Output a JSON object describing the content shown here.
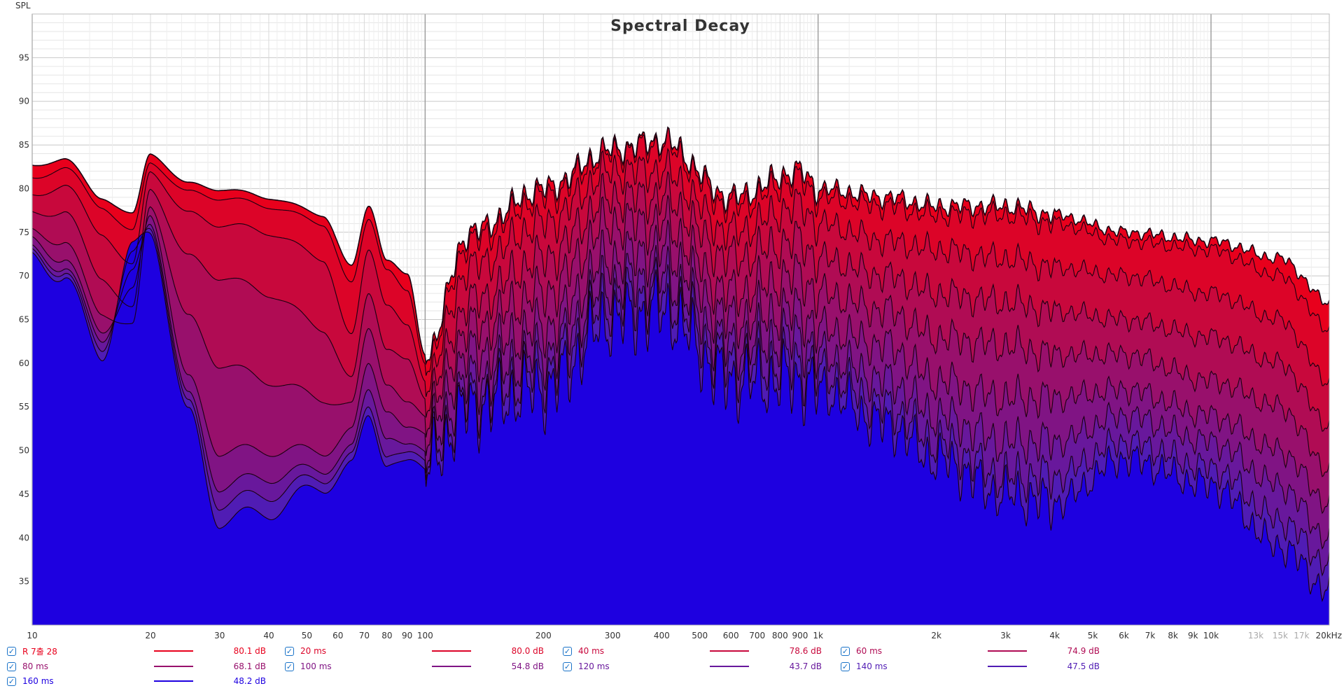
{
  "chart_data": {
    "type": "area",
    "title": "Spectral Decay",
    "ylabel": "SPL",
    "xlabel": "",
    "x_scale": "log",
    "xlim": [
      10,
      20000
    ],
    "ylim": [
      30,
      100
    ],
    "y_ticks": [
      35,
      40,
      45,
      50,
      55,
      60,
      65,
      70,
      75,
      80,
      85,
      90,
      95
    ],
    "x_ticks": [
      {
        "v": 10,
        "label": "10",
        "faint": false
      },
      {
        "v": 20,
        "label": "20",
        "faint": false
      },
      {
        "v": 30,
        "label": "30",
        "faint": false
      },
      {
        "v": 40,
        "label": "40",
        "faint": false
      },
      {
        "v": 50,
        "label": "50",
        "faint": false
      },
      {
        "v": 60,
        "label": "60",
        "faint": false
      },
      {
        "v": 70,
        "label": "70",
        "faint": false
      },
      {
        "v": 80,
        "label": "80",
        "faint": false
      },
      {
        "v": 90,
        "label": "90",
        "faint": false
      },
      {
        "v": 100,
        "label": "100",
        "faint": false
      },
      {
        "v": 200,
        "label": "200",
        "faint": false
      },
      {
        "v": 300,
        "label": "300",
        "faint": false
      },
      {
        "v": 400,
        "label": "400",
        "faint": false
      },
      {
        "v": 500,
        "label": "500",
        "faint": false
      },
      {
        "v": 600,
        "label": "600",
        "faint": false
      },
      {
        "v": 700,
        "label": "700",
        "faint": false
      },
      {
        "v": 800,
        "label": "800",
        "faint": false
      },
      {
        "v": 900,
        "label": "900",
        "faint": false
      },
      {
        "v": 1000,
        "label": "1k",
        "faint": false
      },
      {
        "v": 2000,
        "label": "2k",
        "faint": false
      },
      {
        "v": 3000,
        "label": "3k",
        "faint": false
      },
      {
        "v": 4000,
        "label": "4k",
        "faint": false
      },
      {
        "v": 5000,
        "label": "5k",
        "faint": false
      },
      {
        "v": 6000,
        "label": "6k",
        "faint": false
      },
      {
        "v": 7000,
        "label": "7k",
        "faint": false
      },
      {
        "v": 8000,
        "label": "8k",
        "faint": false
      },
      {
        "v": 9000,
        "label": "9k",
        "faint": false
      },
      {
        "v": 10000,
        "label": "10k",
        "faint": false
      },
      {
        "v": 13000,
        "label": "13k",
        "faint": true
      },
      {
        "v": 15000,
        "label": "15k",
        "faint": true
      },
      {
        "v": 17000,
        "label": "17k",
        "faint": true
      },
      {
        "v": 20000,
        "label": "20kHz",
        "faint": false
      }
    ],
    "series": [
      {
        "name": "R 7출 28",
        "value_label": "80.1 dB",
        "color": "#e8001c",
        "points": [
          [
            10,
            82.5
          ],
          [
            12,
            83.5
          ],
          [
            15,
            79
          ],
          [
            18,
            77
          ],
          [
            20,
            84
          ],
          [
            25,
            80.5
          ],
          [
            30,
            80
          ],
          [
            40,
            79
          ],
          [
            55,
            77
          ],
          [
            65,
            71
          ],
          [
            72,
            78
          ],
          [
            80,
            72
          ],
          [
            90,
            70
          ],
          [
            100,
            61
          ],
          [
            130,
            75
          ],
          [
            200,
            80
          ],
          [
            300,
            84.5
          ],
          [
            400,
            85.5
          ],
          [
            600,
            79
          ],
          [
            900,
            82
          ],
          [
            1000,
            80
          ],
          [
            1500,
            79
          ],
          [
            2000,
            78
          ],
          [
            3000,
            78
          ],
          [
            4000,
            77
          ],
          [
            6000,
            75
          ],
          [
            10000,
            74
          ],
          [
            15000,
            72
          ],
          [
            20000,
            67
          ]
        ]
      },
      {
        "name": "20 ms",
        "value_label": "80.0 dB",
        "color": "#dc0428",
        "points": [
          [
            10,
            81
          ],
          [
            12,
            82.5
          ],
          [
            15,
            78
          ],
          [
            18,
            75
          ],
          [
            20,
            83
          ],
          [
            25,
            79.5
          ],
          [
            30,
            79
          ],
          [
            40,
            78
          ],
          [
            55,
            76
          ],
          [
            65,
            69
          ],
          [
            72,
            76.5
          ],
          [
            80,
            71
          ],
          [
            90,
            68
          ],
          [
            100,
            60
          ],
          [
            130,
            74
          ],
          [
            200,
            79
          ],
          [
            300,
            84
          ],
          [
            400,
            85
          ],
          [
            600,
            78
          ],
          [
            900,
            81
          ],
          [
            1000,
            79
          ],
          [
            1500,
            78
          ],
          [
            2000,
            77
          ],
          [
            3000,
            77
          ],
          [
            4000,
            76
          ],
          [
            6000,
            74
          ],
          [
            10000,
            73
          ],
          [
            15000,
            70
          ],
          [
            20000,
            64
          ]
        ]
      },
      {
        "name": "40 ms",
        "value_label": "78.6 dB",
        "color": "#c8083c",
        "points": [
          [
            10,
            79
          ],
          [
            12,
            80.5
          ],
          [
            15,
            75
          ],
          [
            18,
            71
          ],
          [
            20,
            82
          ],
          [
            25,
            77
          ],
          [
            30,
            76
          ],
          [
            40,
            75
          ],
          [
            55,
            72
          ],
          [
            65,
            63
          ],
          [
            72,
            73
          ],
          [
            80,
            67
          ],
          [
            90,
            64
          ],
          [
            100,
            58
          ],
          [
            130,
            71
          ],
          [
            200,
            76
          ],
          [
            300,
            82
          ],
          [
            400,
            82
          ],
          [
            600,
            75
          ],
          [
            900,
            78
          ],
          [
            1000,
            76
          ],
          [
            1500,
            74
          ],
          [
            2000,
            73
          ],
          [
            3000,
            72
          ],
          [
            4000,
            71
          ],
          [
            6000,
            70
          ],
          [
            10000,
            68
          ],
          [
            15000,
            65
          ],
          [
            20000,
            58
          ]
        ]
      },
      {
        "name": "60 ms",
        "value_label": "74.9 dB",
        "color": "#b00c54",
        "points": [
          [
            10,
            77
          ],
          [
            12,
            77.5
          ],
          [
            15,
            70
          ],
          [
            18,
            66
          ],
          [
            20,
            80
          ],
          [
            25,
            72
          ],
          [
            30,
            70
          ],
          [
            40,
            68
          ],
          [
            55,
            64
          ],
          [
            65,
            58
          ],
          [
            72,
            68
          ],
          [
            80,
            62
          ],
          [
            90,
            60
          ],
          [
            100,
            56
          ],
          [
            130,
            67
          ],
          [
            200,
            72
          ],
          [
            300,
            79
          ],
          [
            400,
            79
          ],
          [
            600,
            72
          ],
          [
            900,
            74
          ],
          [
            1000,
            72
          ],
          [
            1500,
            70
          ],
          [
            2000,
            68
          ],
          [
            3000,
            67
          ],
          [
            4000,
            66
          ],
          [
            6000,
            65
          ],
          [
            10000,
            63
          ],
          [
            15000,
            60
          ],
          [
            20000,
            53
          ]
        ]
      },
      {
        "name": "80 ms",
        "value_label": "68.1 dB",
        "color": "#98106c",
        "points": [
          [
            10,
            75
          ],
          [
            12,
            74
          ],
          [
            15,
            66
          ],
          [
            18,
            64
          ],
          [
            20,
            78
          ],
          [
            25,
            65
          ],
          [
            30,
            60
          ],
          [
            40,
            58
          ],
          [
            55,
            56
          ],
          [
            65,
            55
          ],
          [
            72,
            64
          ],
          [
            80,
            58
          ],
          [
            90,
            55
          ],
          [
            100,
            54
          ],
          [
            130,
            64
          ],
          [
            200,
            68
          ],
          [
            300,
            76
          ],
          [
            400,
            76
          ],
          [
            600,
            68
          ],
          [
            900,
            70
          ],
          [
            1000,
            68
          ],
          [
            1500,
            66
          ],
          [
            2000,
            63
          ],
          [
            3000,
            62
          ],
          [
            4000,
            61
          ],
          [
            6000,
            61
          ],
          [
            10000,
            58
          ],
          [
            15000,
            55
          ],
          [
            20000,
            48
          ]
        ]
      },
      {
        "name": "100 ms",
        "value_label": "54.8 dB",
        "color": "#801484",
        "points": [
          [
            10,
            74
          ],
          [
            12,
            72
          ],
          [
            15,
            64
          ],
          [
            18,
            68
          ],
          [
            20,
            77
          ],
          [
            25,
            58
          ],
          [
            30,
            50
          ],
          [
            40,
            50
          ],
          [
            55,
            50
          ],
          [
            65,
            52
          ],
          [
            72,
            60
          ],
          [
            80,
            55
          ],
          [
            90,
            52
          ],
          [
            100,
            52
          ],
          [
            130,
            61
          ],
          [
            200,
            64
          ],
          [
            300,
            72
          ],
          [
            400,
            73
          ],
          [
            600,
            65
          ],
          [
            900,
            66
          ],
          [
            1000,
            64
          ],
          [
            1500,
            62
          ],
          [
            2000,
            58
          ],
          [
            3000,
            56
          ],
          [
            4000,
            56
          ],
          [
            6000,
            57
          ],
          [
            10000,
            54
          ],
          [
            15000,
            50
          ],
          [
            20000,
            44
          ]
        ]
      },
      {
        "name": "120 ms",
        "value_label": "43.7 dB",
        "color": "#68189c",
        "points": [
          [
            10,
            73
          ],
          [
            12,
            71
          ],
          [
            15,
            63
          ],
          [
            18,
            70
          ],
          [
            20,
            76
          ],
          [
            25,
            56
          ],
          [
            30,
            46
          ],
          [
            40,
            47
          ],
          [
            55,
            48
          ],
          [
            65,
            50
          ],
          [
            72,
            57
          ],
          [
            80,
            52
          ],
          [
            90,
            50
          ],
          [
            100,
            50
          ],
          [
            130,
            58
          ],
          [
            200,
            61
          ],
          [
            300,
            69
          ],
          [
            400,
            70
          ],
          [
            600,
            62
          ],
          [
            900,
            63
          ],
          [
            1000,
            61
          ],
          [
            1500,
            58
          ],
          [
            2000,
            54
          ],
          [
            3000,
            51
          ],
          [
            4000,
            51
          ],
          [
            6000,
            54
          ],
          [
            10000,
            51
          ],
          [
            15000,
            46
          ],
          [
            20000,
            40
          ]
        ]
      },
      {
        "name": "140 ms",
        "value_label": "47.5 dB",
        "color": "#501cb4",
        "points": [
          [
            10,
            72.5
          ],
          [
            12,
            70.5
          ],
          [
            15,
            62
          ],
          [
            18,
            72
          ],
          [
            20,
            75.5
          ],
          [
            25,
            55
          ],
          [
            30,
            44
          ],
          [
            40,
            45
          ],
          [
            55,
            47
          ],
          [
            65,
            49
          ],
          [
            72,
            55
          ],
          [
            80,
            50
          ],
          [
            90,
            49
          ],
          [
            100,
            49
          ],
          [
            130,
            56
          ],
          [
            200,
            59
          ],
          [
            300,
            67
          ],
          [
            400,
            68
          ],
          [
            600,
            60
          ],
          [
            900,
            60
          ],
          [
            1000,
            59
          ],
          [
            1500,
            55
          ],
          [
            2000,
            51
          ],
          [
            3000,
            47
          ],
          [
            4000,
            47
          ],
          [
            6000,
            51
          ],
          [
            10000,
            48
          ],
          [
            15000,
            42
          ],
          [
            20000,
            37
          ]
        ]
      },
      {
        "name": "160 ms",
        "value_label": "48.2 dB",
        "color": "#1e00e0",
        "points": [
          [
            10,
            72
          ],
          [
            12,
            70
          ],
          [
            15,
            61
          ],
          [
            18,
            73
          ],
          [
            20,
            75
          ],
          [
            25,
            54
          ],
          [
            30,
            42
          ],
          [
            40,
            43
          ],
          [
            55,
            46
          ],
          [
            65,
            48
          ],
          [
            72,
            54
          ],
          [
            80,
            49
          ],
          [
            90,
            48
          ],
          [
            100,
            48
          ],
          [
            130,
            55
          ],
          [
            200,
            57
          ],
          [
            300,
            65
          ],
          [
            400,
            66
          ],
          [
            600,
            58
          ],
          [
            900,
            58
          ],
          [
            1000,
            57
          ],
          [
            1500,
            53
          ],
          [
            2000,
            49
          ],
          [
            3000,
            45
          ],
          [
            4000,
            44
          ],
          [
            6000,
            49
          ],
          [
            10000,
            46
          ],
          [
            15000,
            39
          ],
          [
            20000,
            34
          ]
        ]
      }
    ]
  }
}
